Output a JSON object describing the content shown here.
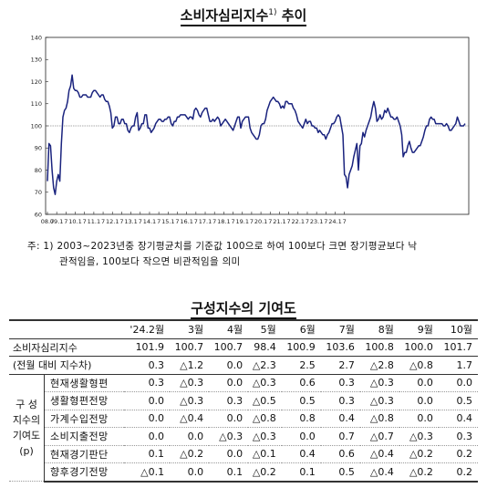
{
  "title": "소비자심리지수",
  "title_sup": "1)",
  "title_suffix": " 추이",
  "note": {
    "line1": "주: 1) 2003~2023년중 장기평균치를 기준값 100으로 하여 100보다 크면 장기평균보다 낙",
    "line2": "관적임을, 100보다 작으면 비관적임을 의미"
  },
  "chart_data": {
    "type": "line",
    "title": "소비자심리지수 추이",
    "ylim": [
      60,
      140
    ],
    "yticks": [
      60,
      70,
      80,
      90,
      100,
      110,
      120,
      130,
      140
    ],
    "reference_line": 100,
    "x_tick_labels": [
      "08.7",
      "09.1",
      "7",
      "10.1",
      "7",
      "11.1",
      "7",
      "12.1",
      "7",
      "13.1",
      "7",
      "14.1",
      "7",
      "15.1",
      "7",
      "16.1",
      "7",
      "17.1",
      "7",
      "18.1",
      "7",
      "19.1",
      "7",
      "20.1",
      "7",
      "21.1",
      "7",
      "22.1",
      "7",
      "23.1",
      "7",
      "24.1",
      "7"
    ],
    "start": "2008.07",
    "end": "2024.10",
    "colors": {
      "line": "#1a237e",
      "reference": "#555555"
    },
    "values": [
      75,
      92,
      91,
      80,
      72,
      69,
      75,
      78,
      75,
      92,
      104,
      107,
      108,
      111,
      116,
      118,
      123,
      117,
      116,
      116,
      115,
      113,
      113,
      114,
      114,
      114,
      113,
      113,
      113,
      115,
      116,
      116,
      115,
      114,
      113,
      114,
      114,
      112,
      111,
      111,
      109,
      106,
      99,
      100,
      104,
      104,
      101,
      101,
      103,
      103,
      101,
      101,
      98,
      97,
      99,
      100,
      100,
      104,
      106,
      98,
      99,
      101,
      101,
      105,
      105,
      99,
      99,
      97,
      98,
      99,
      101,
      102,
      103,
      103,
      102,
      102,
      103,
      103,
      104,
      104,
      101,
      100,
      102,
      102,
      104,
      104,
      105,
      105,
      105,
      105,
      104,
      103,
      104,
      104,
      103,
      107,
      108,
      107,
      105,
      104,
      106,
      107,
      108,
      108,
      105,
      102,
      102,
      103,
      102,
      103,
      104,
      103,
      100,
      101,
      102,
      103,
      102,
      101,
      100,
      99,
      98,
      100,
      102,
      104,
      104,
      99,
      102,
      103,
      104,
      104,
      104,
      99,
      97,
      96,
      95,
      94,
      94,
      96,
      100,
      101,
      101,
      103,
      107,
      109,
      111,
      112,
      113,
      112,
      111,
      111,
      110,
      108,
      109,
      108,
      111,
      111,
      110,
      110,
      110,
      108,
      107,
      105,
      102,
      101,
      100,
      99,
      101,
      103,
      101,
      102,
      102,
      100,
      100,
      99,
      99,
      97,
      98,
      97,
      96,
      96,
      94,
      96,
      97,
      99,
      101,
      101,
      102,
      104,
      105,
      104,
      100,
      96,
      78,
      77,
      72,
      78,
      80,
      82,
      86,
      89,
      92,
      80,
      91,
      92,
      97,
      95,
      98,
      100,
      102,
      104,
      108,
      111,
      108,
      102,
      103,
      105,
      103,
      104,
      107,
      106,
      108,
      106,
      104,
      104,
      103,
      103,
      104,
      102,
      100,
      96,
      86,
      88,
      88,
      91,
      93,
      90,
      88,
      88,
      89,
      90,
      91,
      91,
      93,
      95,
      98,
      100,
      100,
      103,
      104,
      103,
      103,
      101,
      101,
      101,
      101,
      101,
      100,
      100,
      101,
      100,
      98,
      98,
      99,
      100,
      101,
      104,
      102,
      100,
      100,
      100,
      101
    ],
    "xlabel": "",
    "ylabel": ""
  },
  "table": {
    "title": "구성지수의 기여도",
    "headers": [
      "",
      "'24.2월",
      "3월",
      "4월",
      "5월",
      "6월",
      "7월",
      "8월",
      "9월",
      "10월"
    ],
    "csi": {
      "label": "소비자심리지수",
      "values": [
        "101.9",
        "100.7",
        "100.7",
        "98.4",
        "100.9",
        "103.6",
        "100.8",
        "100.0",
        "101.7"
      ]
    },
    "change": {
      "label": "(전월 대비 지수차)",
      "values": [
        "0.3",
        "△1.2",
        "0.0",
        "△2.3",
        "2.5",
        "2.7",
        "△2.8",
        "△0.8",
        "1.7"
      ]
    },
    "group_label": [
      "구  성",
      "지수의",
      "기여도",
      "(p)"
    ],
    "rows": [
      {
        "label": "현재생활형편",
        "values": [
          "0.3",
          "△0.3",
          "0.0",
          "△0.3",
          "0.6",
          "0.3",
          "△0.3",
          "0.0",
          "0.0"
        ]
      },
      {
        "label": "생활형편전망",
        "values": [
          "0.0",
          "△0.3",
          "0.3",
          "△0.5",
          "0.5",
          "0.3",
          "△0.3",
          "0.0",
          "0.5"
        ]
      },
      {
        "label": "가계수입전망",
        "values": [
          "0.0",
          "△0.4",
          "0.0",
          "△0.8",
          "0.8",
          "0.4",
          "△0.8",
          "0.0",
          "0.4"
        ]
      },
      {
        "label": "소비지출전망",
        "values": [
          "0.0",
          "0.0",
          "△0.3",
          "△0.3",
          "0.0",
          "0.7",
          "△0.7",
          "△0.3",
          "0.3"
        ]
      },
      {
        "label": "현재경기판단",
        "values": [
          "0.1",
          "△0.2",
          "0.0",
          "△0.1",
          "0.4",
          "0.6",
          "△0.4",
          "△0.2",
          "0.2"
        ]
      },
      {
        "label": "향후경기전망",
        "values": [
          "△0.1",
          "0.0",
          "0.1",
          "△0.2",
          "0.1",
          "0.5",
          "△0.4",
          "△0.2",
          "0.2"
        ]
      }
    ]
  }
}
